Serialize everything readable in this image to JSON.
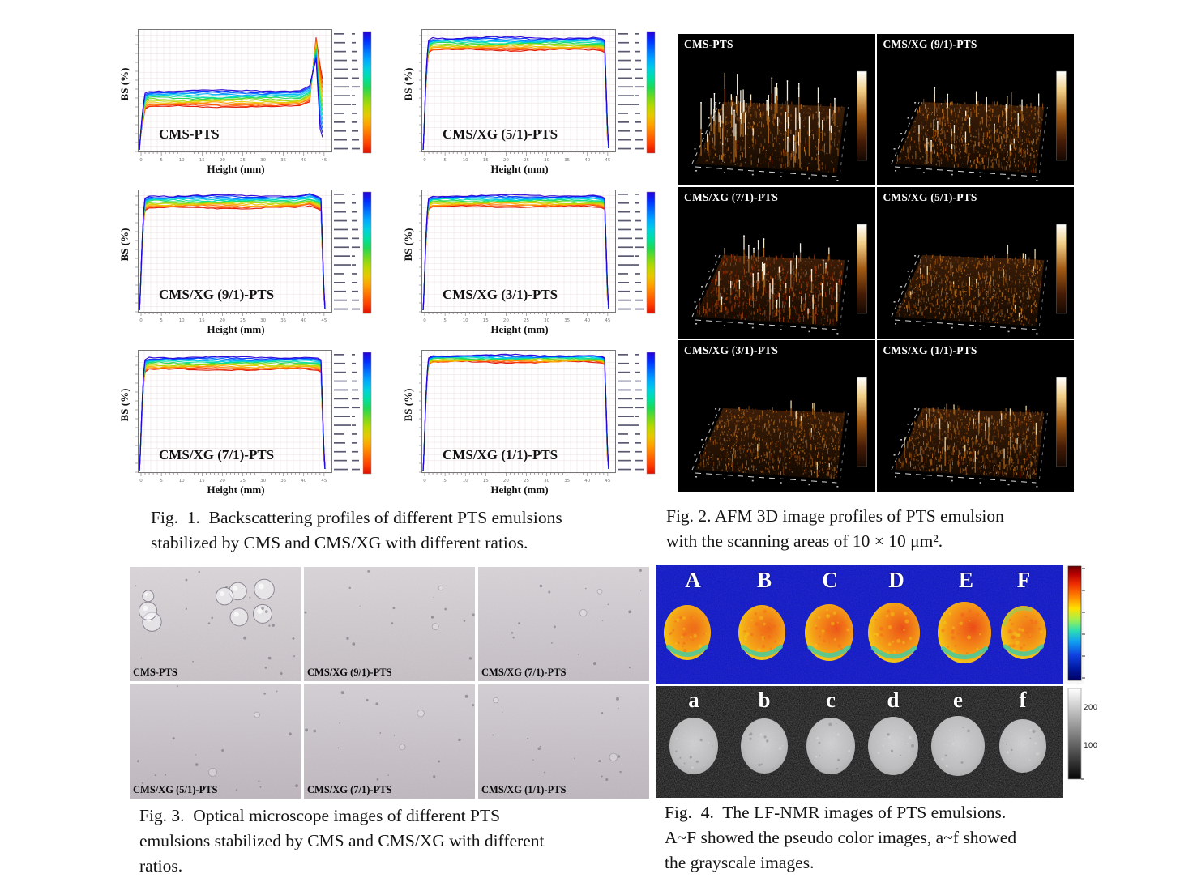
{
  "page": {
    "background": "#ffffff"
  },
  "fig1": {
    "xlabel": "Height (mm)",
    "ylabel": "BS (%)",
    "plots": [
      {
        "label": "CMS-PTS"
      },
      {
        "label": "CMS/XG (5/1)-PTS"
      },
      {
        "label": "CMS/XG (9/1)-PTS"
      },
      {
        "label": "CMS/XG (3/1)-PTS"
      },
      {
        "label": "CMS/XG (7/1)-PTS"
      },
      {
        "label": "CMS/XG (1/1)-PTS"
      }
    ],
    "caption": [
      "Fig.  1.  Backscattering profiles of different PTS emulsions",
      "stabilized by CMS and CMS/XG with different ratios."
    ]
  },
  "fig2": {
    "panels": [
      {
        "label": "CMS-PTS",
        "small": 500,
        "small_h": 12,
        "tall": 55,
        "tall_min": 20,
        "tall_h": 48,
        "bright": 1,
        "red": 0
      },
      {
        "label": "CMS/XG (9/1)-PTS",
        "small": 950,
        "small_h": 10,
        "tall": 26,
        "tall_min": 12,
        "tall_h": 34,
        "bright": 1,
        "red": 0
      },
      {
        "label": "CMS/XG (7/1)-PTS",
        "small": 850,
        "small_h": 11,
        "tall": 38,
        "tall_min": 12,
        "tall_h": 36,
        "bright": 1,
        "red": 1
      },
      {
        "label": "CMS/XG (5/1)-PTS",
        "small": 1050,
        "small_h": 9,
        "tall": 16,
        "tall_min": 8,
        "tall_h": 26,
        "bright": 0,
        "red": 0
      },
      {
        "label": "CMS/XG (3/1)-PTS",
        "small": 950,
        "small_h": 8,
        "tall": 12,
        "tall_min": 6,
        "tall_h": 22,
        "bright": 0,
        "red": 0
      },
      {
        "label": "CMS/XG (1/1)-PTS",
        "small": 1000,
        "small_h": 10,
        "tall": 22,
        "tall_min": 8,
        "tall_h": 30,
        "bright": 0,
        "red": 0
      }
    ],
    "caption": [
      "Fig. 2. AFM 3D image profiles of PTS emulsion",
      "with the scanning areas of 10 × 10 μm²."
    ]
  },
  "fig3": {
    "panels": [
      {
        "label": "CMS-PTS",
        "droplets": true,
        "shade": "#cdc7cb"
      },
      {
        "label": "CMS/XG (9/1)-PTS",
        "droplets": false,
        "shade": "#cbc5c9"
      },
      {
        "label": "CMS/XG (7/1)-PTS",
        "droplets": false,
        "shade": "#c9c3c8"
      },
      {
        "label": "CMS/XG (5/1)-PTS",
        "droplets": false,
        "shade": "#c2bbc1"
      },
      {
        "label": "CMS/XG (7/1)-PTS",
        "droplets": false,
        "shade": "#c4bdc3"
      },
      {
        "label": "CMS/XG (1/1)-PTS",
        "droplets": false,
        "shade": "#c3bcc2"
      }
    ],
    "caption": [
      "Fig. 3.  Optical microscope images of different PTS",
      "emulsions stabilized by CMS and CMS/XG with different",
      "ratios."
    ]
  },
  "fig4": {
    "pseudo": {
      "letters": [
        "A",
        "B",
        "C",
        "D",
        "E",
        "F"
      ]
    },
    "grayscale": {
      "letters": [
        "a",
        "b",
        "c",
        "d",
        "e",
        "f"
      ],
      "colorbar_ticks": [
        "200",
        "100"
      ]
    },
    "caption": [
      "Fig.  4.  The LF-NMR images of PTS emulsions.",
      "A~F showed the pseudo color images, a~f showed",
      "the grayscale images."
    ]
  },
  "chart_data": [
    {
      "type": "line",
      "title": "CMS-PTS",
      "xlabel": "Height (mm)",
      "ylabel": "BS (%)",
      "x_range": [
        0,
        45
      ],
      "n_scans": 14,
      "band_top": 0.5,
      "band_bot": 0.63,
      "right": "spike",
      "spike_top": 0.07,
      "note": "multi-scan backscattering band, early scans (blue) above late scans (red), tall spike near 42 mm"
    },
    {
      "type": "line",
      "title": "CMS/XG (5/1)-PTS",
      "xlabel": "Height (mm)",
      "ylabel": "BS (%)",
      "x_range": [
        0,
        45
      ],
      "n_scans": 14,
      "band_top": 0.07,
      "band_bot": 0.17,
      "right": "drop"
    },
    {
      "type": "line",
      "title": "CMS/XG (9/1)-PTS",
      "xlabel": "Height (mm)",
      "ylabel": "BS (%)",
      "x_range": [
        0,
        45
      ],
      "n_scans": 14,
      "band_top": 0.05,
      "band_bot": 0.15,
      "right": "drop",
      "bump": true
    },
    {
      "type": "line",
      "title": "CMS/XG (3/1)-PTS",
      "xlabel": "Height (mm)",
      "ylabel": "BS (%)",
      "x_range": [
        0,
        45
      ],
      "n_scans": 14,
      "band_top": 0.05,
      "band_bot": 0.14,
      "right": "drop"
    },
    {
      "type": "line",
      "title": "CMS/XG (7/1)-PTS",
      "xlabel": "Height (mm)",
      "ylabel": "BS (%)",
      "x_range": [
        0,
        45
      ],
      "n_scans": 14,
      "band_top": 0.06,
      "band_bot": 0.16,
      "right": "drop"
    },
    {
      "type": "line",
      "title": "CMS/XG (1/1)-PTS",
      "xlabel": "Height (mm)",
      "ylabel": "BS (%)",
      "x_range": [
        0,
        45
      ],
      "n_scans": 14,
      "band_top": 0.045,
      "band_bot": 0.1,
      "right": "drop"
    }
  ]
}
